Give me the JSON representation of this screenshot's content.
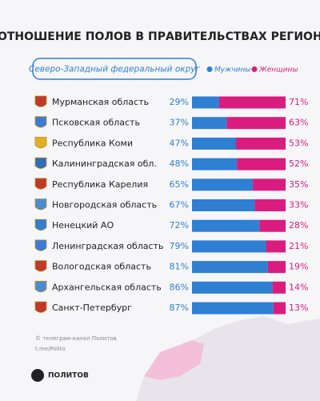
{
  "chart_data": {
    "type": "bar",
    "orientation": "horizontal",
    "stacked": true,
    "title": "СООТНОШЕНИЕ ПОЛОВ В ПРАВИТЕЛЬСТВАХ РЕГИОНОВ",
    "subtitle": "Северо-Западный федеральный округ",
    "categories": [
      "Мурманская область",
      "Псковская область",
      "Республика Коми",
      "Калининградская обл.",
      "Республика Карелия",
      "Новгородская область",
      "Ненецкий АО",
      "Ленинградская область",
      "Вологодская область",
      "Архангельская область",
      "Санкт-Петербург"
    ],
    "series": [
      {
        "name": "Мужчины",
        "color": "#2f7fd3",
        "values": [
          29,
          37,
          47,
          48,
          65,
          67,
          72,
          79,
          81,
          86,
          87
        ],
        "value_labels": [
          "29%",
          "37%",
          "47%",
          "48%",
          "65%",
          "67%",
          "72%",
          "79%",
          "81%",
          "86%",
          "87%"
        ]
      },
      {
        "name": "Женщины",
        "color": "#d91c7e",
        "values": [
          71,
          63,
          53,
          52,
          35,
          33,
          28,
          21,
          19,
          14,
          13
        ],
        "value_labels": [
          "71%",
          "63%",
          "53%",
          "52%",
          "35%",
          "33%",
          "28%",
          "21%",
          "19%",
          "14%",
          "13%"
        ]
      }
    ],
    "xlim": [
      0,
      100
    ],
    "source": "© телеграм-канал Политов",
    "source_link": "t.me/Polito",
    "brand": "ПОЛИТОВ"
  }
}
